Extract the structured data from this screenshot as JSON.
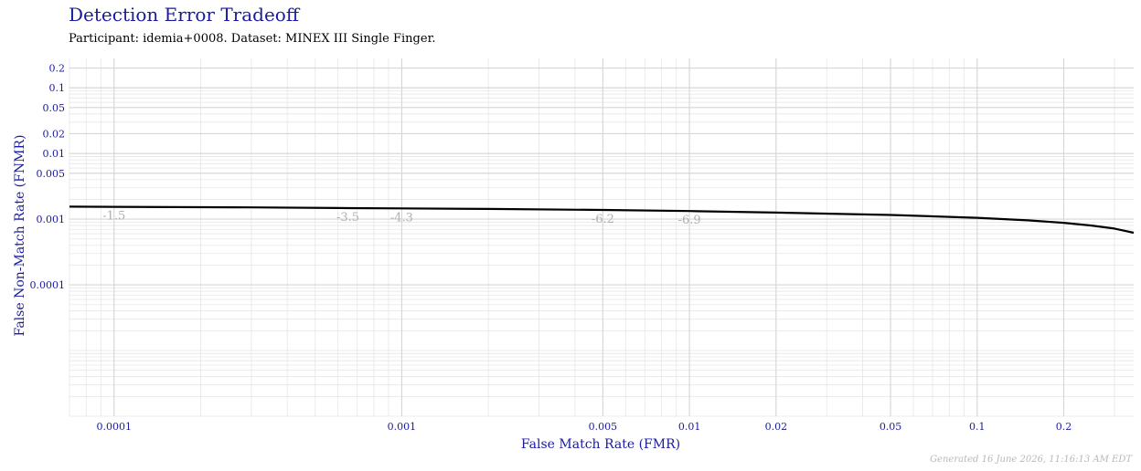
{
  "header": {
    "title": "Detection Error Tradeoff",
    "subtitle": "Participant: idemia+0008. Dataset: MINEX III Single Finger."
  },
  "footer": {
    "generated": "Generated 16 June 2026, 11:16:13 AM EDT"
  },
  "colors": {
    "title": "#1a1aa0",
    "curve": "#000000",
    "grid": "#e6e6e6",
    "threshold_labels": "#b0b0b0"
  },
  "chart_data": {
    "type": "line",
    "title": "Detection Error Tradeoff",
    "xlabel": "False Match Rate (FMR)",
    "ylabel": "False Non-Match Rate (FNMR)",
    "xscale": "log",
    "yscale": "log",
    "xlim": [
      7e-05,
      0.35
    ],
    "ylim": [
      1e-06,
      0.28
    ],
    "grid": true,
    "x_ticks": [
      {
        "value": 0.0001,
        "label": "0.0001"
      },
      {
        "value": 0.001,
        "label": "0.001"
      },
      {
        "value": 0.005,
        "label": "0.005"
      },
      {
        "value": 0.01,
        "label": "0.01"
      },
      {
        "value": 0.02,
        "label": "0.02"
      },
      {
        "value": 0.05,
        "label": "0.05"
      },
      {
        "value": 0.1,
        "label": "0.1"
      },
      {
        "value": 0.2,
        "label": "0.2"
      }
    ],
    "y_ticks": [
      {
        "value": 0.0001,
        "label": "0.0001"
      },
      {
        "value": 0.001,
        "label": "0.001"
      },
      {
        "value": 0.005,
        "label": "0.005"
      },
      {
        "value": 0.01,
        "label": "0.01"
      },
      {
        "value": 0.02,
        "label": "0.02"
      },
      {
        "value": 0.05,
        "label": "0.05"
      },
      {
        "value": 0.1,
        "label": "0.1"
      },
      {
        "value": 0.2,
        "label": "0.2"
      }
    ],
    "series": [
      {
        "x": [
          7e-05,
          0.0001,
          0.0003,
          0.0006,
          0.001,
          0.002,
          0.005,
          0.01,
          0.02,
          0.05,
          0.1,
          0.15,
          0.2,
          0.25,
          0.3,
          0.35
        ],
        "y": [
          0.00155,
          0.00154,
          0.00151,
          0.00148,
          0.00146,
          0.00143,
          0.00138,
          0.00133,
          0.00126,
          0.00116,
          0.00105,
          0.00096,
          0.00088,
          0.0008,
          0.00072,
          0.00062
        ]
      }
    ],
    "threshold_annotations": [
      {
        "x": 0.0001,
        "y": 0.00154,
        "label": "-1.5"
      },
      {
        "x": 0.00065,
        "y": 0.00147,
        "label": "-3.5"
      },
      {
        "x": 0.001,
        "y": 0.00146,
        "label": "-4.3"
      },
      {
        "x": 0.005,
        "y": 0.00138,
        "label": "-6.2"
      },
      {
        "x": 0.01,
        "y": 0.00133,
        "label": "-6.9"
      }
    ]
  }
}
